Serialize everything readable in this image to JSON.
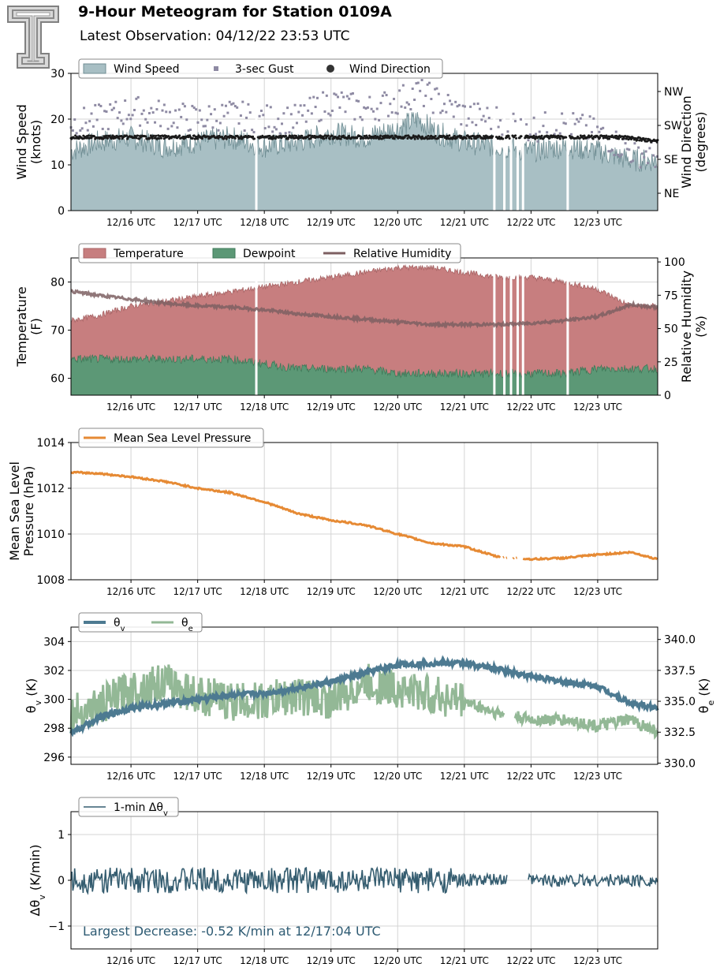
{
  "header": {
    "title": "9-Hour Meteogram for Station 0109A",
    "subtitle": "Latest Observation: 04/12/22 23:53 UTC"
  },
  "colors": {
    "wind_fill": "#a8bfc4",
    "wind_edge": "#6f8d93",
    "gust": "#8e8aa3",
    "direction": "#1a1a1a",
    "temperature": "#c77e7f",
    "dewpoint": "#5c9876",
    "humidity": "#7d5f61",
    "pressure": "#e68a34",
    "theta_v": "#4d7a91",
    "theta_e": "#93b896",
    "delta": "#355d70",
    "annotation": "#2e5b73"
  },
  "chart_data": [
    {
      "type": "area",
      "panel": "wind",
      "xlabel": "",
      "x_ticks": [
        "12/16 UTC",
        "12/17 UTC",
        "12/18 UTC",
        "12/19 UTC",
        "12/20 UTC",
        "12/21 UTC",
        "12/22 UTC",
        "12/23 UTC"
      ],
      "x_range_hours": [
        15.1,
        23.9
      ],
      "ylabel": "Wind Speed (knots)",
      "ylim": [
        0,
        30
      ],
      "y_ticks": [
        "0",
        "10",
        "20",
        "30"
      ],
      "y2label": "Wind Direction (degrees)",
      "y2_ticks": [
        "NE",
        "SE",
        "SW",
        "NW"
      ],
      "legend": [
        "Wind Speed",
        "3-sec Gust",
        "Wind Direction"
      ],
      "legend_position": "top-left",
      "grid": true,
      "series": [
        {
          "name": "Wind Speed",
          "style": "filled area",
          "unit": "knots",
          "x_hours": [
            15.1,
            15.5,
            16.0,
            16.5,
            17.0,
            17.5,
            18.0,
            18.5,
            19.0,
            19.5,
            20.0,
            20.3,
            20.6,
            21.0,
            21.5,
            22.0,
            22.5,
            23.0,
            23.5,
            23.9
          ],
          "values": [
            13,
            15,
            16,
            14,
            15,
            16,
            14,
            15,
            17,
            16,
            18,
            20,
            17,
            15,
            14,
            13,
            14,
            13,
            11,
            11
          ],
          "gaps_hours": [
            17.88,
            21.45,
            21.6,
            21.7,
            21.8,
            21.88,
            22.55
          ]
        },
        {
          "name": "3-sec Gust",
          "style": "square markers",
          "unit": "knots",
          "x_hours": [
            15.1,
            15.5,
            16.0,
            16.5,
            17.0,
            17.5,
            18.0,
            18.5,
            19.0,
            19.5,
            20.0,
            20.3,
            20.6,
            21.0,
            21.5,
            22.0,
            22.5,
            23.0,
            23.5,
            23.9
          ],
          "values": [
            19,
            20,
            22,
            21,
            20,
            21,
            20,
            20,
            24,
            22,
            24,
            26,
            24,
            21,
            20,
            18,
            19,
            17,
            13,
            12
          ]
        },
        {
          "name": "Wind Direction",
          "style": "dot markers",
          "x_hours": [
            15.1,
            23.9
          ],
          "values": [
            "S",
            "S"
          ]
        }
      ]
    },
    {
      "type": "area",
      "panel": "temperature",
      "x_ticks": [
        "12/16 UTC",
        "12/17 UTC",
        "12/18 UTC",
        "12/19 UTC",
        "12/20 UTC",
        "12/21 UTC",
        "12/22 UTC",
        "12/23 UTC"
      ],
      "x_range_hours": [
        15.1,
        23.9
      ],
      "ylabel": "Temperature (F)",
      "ylim": [
        56.5,
        85
      ],
      "y_ticks": [
        "60",
        "70",
        "80"
      ],
      "y2label": "Relative Humidity (%)",
      "y2lim": [
        0,
        103
      ],
      "y2_ticks": [
        "0",
        "25",
        "50",
        "75",
        "100"
      ],
      "legend": [
        "Temperature",
        "Dewpoint",
        "Relative Humidity"
      ],
      "legend_position": "top-left",
      "grid": true,
      "series": [
        {
          "name": "Temperature",
          "unit": "F",
          "x_hours": [
            15.1,
            15.5,
            16.0,
            16.5,
            17.0,
            17.5,
            18.0,
            18.5,
            19.0,
            19.5,
            20.0,
            20.5,
            21.0,
            21.5,
            22.0,
            22.5,
            23.0,
            23.5,
            23.9
          ],
          "values": [
            72,
            73,
            75,
            76,
            77,
            78,
            79,
            80,
            81,
            82,
            83,
            83,
            82,
            81,
            81,
            80,
            78.5,
            75,
            75
          ]
        },
        {
          "name": "Dewpoint",
          "unit": "F",
          "x_hours": [
            15.1,
            15.5,
            16.0,
            16.5,
            17.0,
            17.5,
            18.0,
            18.5,
            19.0,
            19.5,
            20.0,
            20.5,
            21.0,
            21.5,
            22.0,
            22.5,
            23.0,
            23.5,
            23.9
          ],
          "values": [
            64,
            64,
            64,
            64,
            64,
            64,
            63,
            62,
            62,
            62,
            61,
            61,
            61,
            61,
            61,
            61,
            62,
            62,
            62
          ]
        },
        {
          "name": "Relative Humidity",
          "unit": "%",
          "x_hours": [
            15.1,
            15.5,
            16.0,
            16.5,
            17.0,
            17.5,
            18.0,
            18.5,
            19.0,
            19.5,
            20.0,
            20.5,
            21.0,
            21.5,
            22.0,
            22.5,
            23.0,
            23.5,
            23.9
          ],
          "values": [
            78,
            75,
            72,
            69,
            67,
            66,
            64,
            61,
            59,
            57,
            55,
            53,
            53,
            53,
            54,
            56,
            59,
            68,
            66
          ]
        }
      ]
    },
    {
      "type": "line",
      "panel": "pressure",
      "x_ticks": [
        "12/16 UTC",
        "12/17 UTC",
        "12/18 UTC",
        "12/19 UTC",
        "12/20 UTC",
        "12/21 UTC",
        "12/22 UTC",
        "12/23 UTC"
      ],
      "x_range_hours": [
        15.1,
        23.9
      ],
      "ylabel": "Mean Sea Level Pressure (hPa)",
      "ylim": [
        1008,
        1014
      ],
      "y_ticks": [
        "1008",
        "1010",
        "1012",
        "1014"
      ],
      "legend": [
        "Mean Sea Level Pressure"
      ],
      "legend_position": "top-left",
      "grid": true,
      "series": [
        {
          "name": "Mean Sea Level Pressure",
          "unit": "hPa",
          "x_hours": [
            15.1,
            15.5,
            16.0,
            16.5,
            17.0,
            17.5,
            18.0,
            18.5,
            19.0,
            19.5,
            20.0,
            20.5,
            21.0,
            21.5,
            22.0,
            22.5,
            23.0,
            23.5,
            23.9
          ],
          "values": [
            1012.7,
            1012.65,
            1012.5,
            1012.3,
            1012.0,
            1011.8,
            1011.4,
            1010.9,
            1010.6,
            1010.4,
            1010.0,
            1009.6,
            1009.45,
            1009.0,
            1008.9,
            1008.95,
            1009.1,
            1009.2,
            1008.9
          ]
        }
      ]
    },
    {
      "type": "line",
      "panel": "theta",
      "x_ticks": [
        "12/16 UTC",
        "12/17 UTC",
        "12/18 UTC",
        "12/19 UTC",
        "12/20 UTC",
        "12/21 UTC",
        "12/22 UTC",
        "12/23 UTC"
      ],
      "x_range_hours": [
        15.1,
        23.9
      ],
      "ylabel": "θv (K)",
      "ylim": [
        295.5,
        305
      ],
      "y_ticks": [
        "296",
        "298",
        "300",
        "302",
        "304"
      ],
      "y2label": "θe (K)",
      "y2lim": [
        329.9,
        341.0
      ],
      "y2_ticks": [
        "330.0",
        "332.5",
        "335.0",
        "337.5",
        "340.0"
      ],
      "legend": [
        "θv",
        "θe"
      ],
      "legend_position": "top-left",
      "grid": true,
      "series": [
        {
          "name": "θv",
          "unit": "K",
          "x_hours": [
            15.1,
            15.5,
            16.0,
            16.5,
            17.0,
            17.5,
            18.0,
            18.5,
            19.0,
            19.5,
            20.0,
            20.5,
            21.0,
            21.5,
            22.0,
            22.5,
            23.0,
            23.5,
            23.9
          ],
          "values": [
            297.6,
            298.7,
            299.4,
            299.7,
            300.0,
            300.3,
            300.4,
            300.8,
            301.2,
            301.8,
            302.4,
            302.5,
            302.5,
            302.1,
            301.6,
            301.2,
            300.9,
            299.7,
            299.4
          ]
        },
        {
          "name": "θe",
          "unit": "K",
          "x_hours": [
            15.1,
            15.5,
            16.0,
            16.5,
            17.0,
            17.5,
            18.0,
            18.5,
            19.0,
            19.5,
            20.0,
            20.5,
            21.0,
            21.5,
            22.0,
            22.5,
            23.0,
            23.5,
            23.9
          ],
          "values": [
            334.0,
            334.5,
            336.0,
            336.5,
            335.5,
            335.0,
            335.0,
            335.5,
            335.0,
            336.5,
            336.0,
            335.5,
            335.0,
            334.0,
            333.5,
            333.5,
            333.0,
            333.5,
            332.5
          ],
          "gaps_hours": [
            21.6,
            21.75
          ]
        }
      ]
    },
    {
      "type": "line",
      "panel": "delta",
      "x_ticks": [
        "12/16 UTC",
        "12/17 UTC",
        "12/18 UTC",
        "12/19 UTC",
        "12/20 UTC",
        "12/21 UTC",
        "12/22 UTC",
        "12/23 UTC"
      ],
      "x_range_hours": [
        15.1,
        23.9
      ],
      "ylabel": "Δθv (K/min)",
      "ylim": [
        -1.5,
        1.5
      ],
      "y_ticks": [
        "-1",
        "0",
        "1"
      ],
      "legend": [
        "1-min Δθv"
      ],
      "legend_position": "top-left",
      "grid": true,
      "annotation": "Largest Decrease: -0.52 K/min at 12/17:04 UTC",
      "series": [
        {
          "name": "1-min Δθv",
          "unit": "K/min",
          "noise_amplitude_early": 0.28,
          "noise_amplitude_late": 0.14,
          "x_hours": [
            15.1,
            23.9
          ],
          "values": [
            0,
            0
          ],
          "min_value": -0.52,
          "gaps_hours": [
            21.65,
            21.95
          ]
        }
      ]
    }
  ]
}
